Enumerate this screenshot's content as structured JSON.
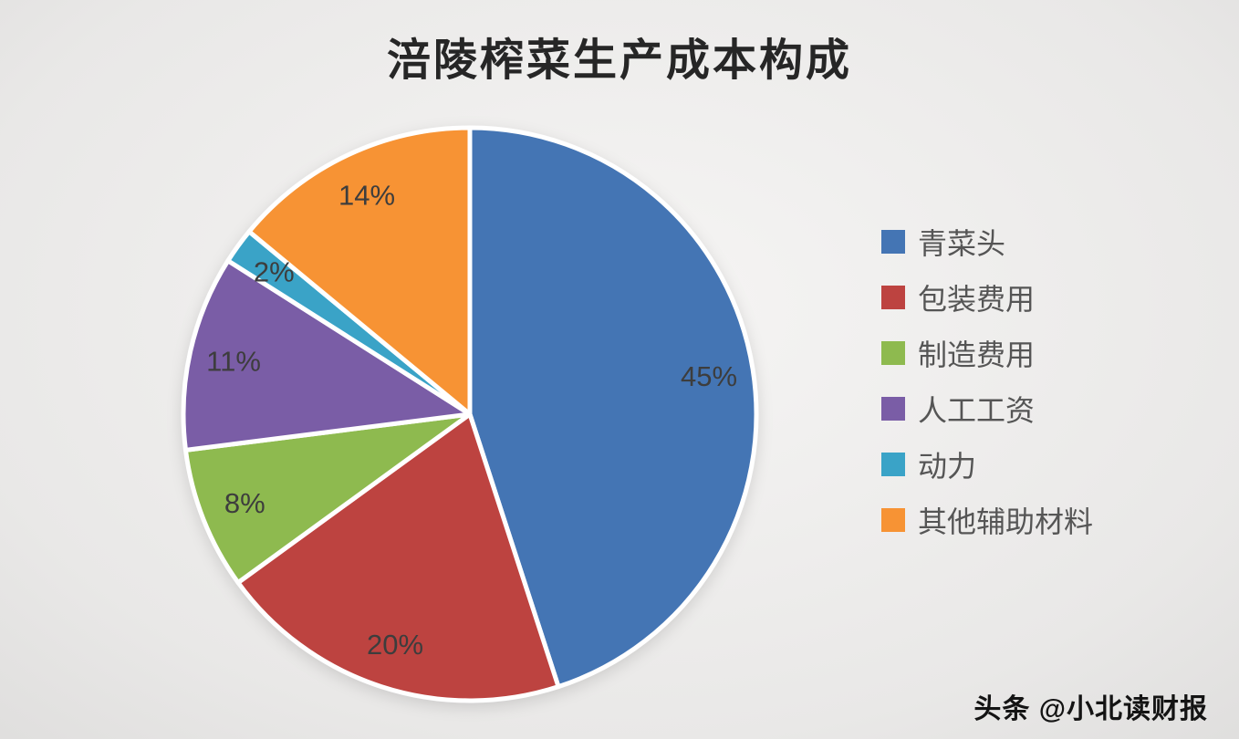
{
  "page": {
    "title": "涪陵榨菜生产成本构成",
    "watermark": "头条 @小北读财报"
  },
  "chart_data": {
    "type": "pie",
    "title": "涪陵榨菜生产成本构成",
    "direction": "clockwise",
    "start_angle_deg": 0,
    "legend_position": "right",
    "grid": false,
    "label_color": "#3d3d3d",
    "stroke_color": "#ffffff",
    "slices": [
      {
        "label": "青菜头",
        "value": 45,
        "pct_label": "45%",
        "color": "#4475b4"
      },
      {
        "label": "包装费用",
        "value": 20,
        "pct_label": "20%",
        "color": "#bd4340"
      },
      {
        "label": "制造费用",
        "value": 8,
        "pct_label": "8%",
        "color": "#8eba4f"
      },
      {
        "label": "人工工资",
        "value": 11,
        "pct_label": "11%",
        "color": "#7a5da6"
      },
      {
        "label": "动力",
        "value": 2,
        "pct_label": "2%",
        "color": "#3aa3c7"
      },
      {
        "label": "其他辅助材料",
        "value": 14,
        "pct_label": "14%",
        "color": "#f79334"
      }
    ]
  }
}
